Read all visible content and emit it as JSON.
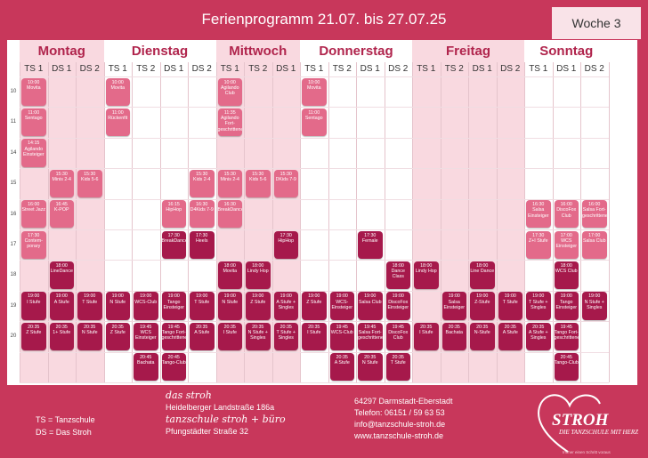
{
  "header": {
    "title": "Ferienprogramm 21.07. bis 27.07.25",
    "week": "Woche 3"
  },
  "hours": [
    10,
    11,
    14,
    15,
    16,
    17,
    18,
    19,
    20
  ],
  "days": [
    {
      "name": "Montag",
      "columns": [
        {
          "label": "TS 1",
          "events": [
            {
              "time": "10:00",
              "name": "Movita",
              "color": "#e36a8a"
            },
            {
              "time": "11:00",
              "name": "Sentago",
              "color": "#e36a8a"
            },
            {
              "time": "14:15",
              "name": "Agilando Einsteiger",
              "color": "#e36a8a"
            },
            {
              "time": "16:00",
              "name": "Street Jazz",
              "color": "#e36a8a"
            },
            {
              "time": "17:30",
              "name": "Contem-porary",
              "color": "#e36a8a"
            },
            {
              "time": "19:00",
              "name": "I Stufe",
              "color": "#a6194b"
            },
            {
              "time": "20:35",
              "name": "Z Stufe",
              "color": "#a6194b"
            }
          ]
        },
        {
          "label": "DS 1",
          "events": [
            {
              "time": "15:30",
              "name": "Minis 2-4",
              "color": "#e36a8a"
            },
            {
              "time": "16:45",
              "name": "K-POP",
              "color": "#e36a8a"
            },
            {
              "time": "18:00",
              "name": "LineDance",
              "color": "#a6194b"
            },
            {
              "time": "19:00",
              "name": "A Stufe",
              "color": "#a6194b"
            },
            {
              "time": "20:35",
              "name": "1+ Stufe",
              "color": "#a6194b"
            }
          ]
        },
        {
          "label": "DS 2",
          "events": [
            {
              "time": "15:30",
              "name": "Kids 5-6",
              "color": "#e36a8a"
            },
            {
              "time": "19:00",
              "name": "T Stufe",
              "color": "#a6194b"
            },
            {
              "time": "20:35",
              "name": "N Stufe",
              "color": "#a6194b"
            }
          ]
        }
      ]
    },
    {
      "name": "Dienstag",
      "columns": [
        {
          "label": "TS 1",
          "events": [
            {
              "time": "10:00",
              "name": "Movita",
              "color": "#e36a8a"
            },
            {
              "time": "11:00",
              "name": "Rückenfit",
              "color": "#e36a8a"
            },
            {
              "time": "19:00",
              "name": "N Stufe",
              "color": "#a6194b"
            },
            {
              "time": "20:35",
              "name": "Z Stufe",
              "color": "#a6194b"
            }
          ]
        },
        {
          "label": "TS 2",
          "events": [
            {
              "time": "19:00",
              "name": "WCS-Club",
              "color": "#a6194b"
            },
            {
              "time": "19:45",
              "name": "WCS Einsteiger",
              "color": "#a6194b"
            },
            {
              "time": "20:45",
              "name": "Bachata",
              "color": "#a6194b"
            }
          ]
        },
        {
          "label": "DS 1",
          "events": [
            {
              "time": "16:15",
              "name": "HipHop",
              "color": "#e36a8a"
            },
            {
              "time": "17:30",
              "name": "BreakDance",
              "color": "#a6194b"
            },
            {
              "time": "19:00",
              "name": "Tango Einsteiger",
              "color": "#a6194b"
            },
            {
              "time": "19:45",
              "name": "Tango Fort-geschrittene",
              "color": "#a6194b"
            },
            {
              "time": "20:45",
              "name": "Tango-Club",
              "color": "#a6194b"
            }
          ]
        },
        {
          "label": "DS 2",
          "events": [
            {
              "time": "15:30",
              "name": "Kids 2-4",
              "color": "#e36a8a"
            },
            {
              "time": "16:30",
              "name": "D4Kids 7-9",
              "color": "#e36a8a"
            },
            {
              "time": "17:30",
              "name": "Heels",
              "color": "#a6194b"
            },
            {
              "time": "19:00",
              "name": "T Stufe",
              "color": "#a6194b"
            },
            {
              "time": "20:35",
              "name": "A Stufe",
              "color": "#a6194b"
            }
          ]
        }
      ]
    },
    {
      "name": "Mittwoch",
      "columns": [
        {
          "label": "TS 1",
          "events": [
            {
              "time": "10:00",
              "name": "Agilando Club",
              "color": "#e36a8a"
            },
            {
              "time": "11:35",
              "name": "Agilando Fort-geschrittene",
              "color": "#e36a8a"
            },
            {
              "time": "15:30",
              "name": "Minis 2-4",
              "color": "#e36a8a"
            },
            {
              "time": "16:30",
              "name": "BreakDance",
              "color": "#e36a8a"
            },
            {
              "time": "18:00",
              "name": "Movita",
              "color": "#a6194b"
            },
            {
              "time": "19:00",
              "name": "N Stufe",
              "color": "#a6194b"
            },
            {
              "time": "20:35",
              "name": "I Stufe",
              "color": "#a6194b"
            }
          ]
        },
        {
          "label": "TS 2",
          "events": [
            {
              "time": "15:30",
              "name": "Kids 5-6",
              "color": "#e36a8a"
            },
            {
              "time": "18:00",
              "name": "Lindy Hop",
              "color": "#a6194b"
            },
            {
              "time": "19:00",
              "name": "Z Stufe",
              "color": "#a6194b"
            },
            {
              "time": "20:35",
              "name": "N Stufe + Singles",
              "color": "#a6194b"
            }
          ]
        },
        {
          "label": "DS 1",
          "events": [
            {
              "time": "15:30",
              "name": "DKids 7-9",
              "color": "#e36a8a"
            },
            {
              "time": "17:30",
              "name": "HipHop",
              "color": "#a6194b"
            },
            {
              "time": "19:00",
              "name": "A Stufe + Singles",
              "color": "#a6194b"
            },
            {
              "time": "20:35",
              "name": "T Stufe + Singles",
              "color": "#a6194b"
            }
          ]
        }
      ]
    },
    {
      "name": "Donnerstag",
      "columns": [
        {
          "label": "TS 1",
          "events": [
            {
              "time": "10:00",
              "name": "Movita",
              "color": "#e36a8a"
            },
            {
              "time": "11:00",
              "name": "Sentago",
              "color": "#e36a8a"
            },
            {
              "time": "19:00",
              "name": "Z Stufe",
              "color": "#a6194b"
            },
            {
              "time": "20:35",
              "name": "I Stufe",
              "color": "#a6194b"
            }
          ]
        },
        {
          "label": "TS 2",
          "events": [
            {
              "time": "19:00",
              "name": "WCS-Einsteiger",
              "color": "#a6194b"
            },
            {
              "time": "19:45",
              "name": "WCS-Club",
              "color": "#a6194b"
            },
            {
              "time": "20:35",
              "name": "A Stufe",
              "color": "#a6194b"
            }
          ]
        },
        {
          "label": "DS 1",
          "events": [
            {
              "time": "17:30",
              "name": "Female",
              "color": "#a6194b"
            },
            {
              "time": "19:00",
              "name": "Salsa Club",
              "color": "#a6194b"
            },
            {
              "time": "19:45",
              "name": "Salsa Fort-geschrittene",
              "color": "#a6194b"
            },
            {
              "time": "20:35",
              "name": "N Stufe",
              "color": "#a6194b"
            }
          ]
        },
        {
          "label": "DS 2",
          "events": [
            {
              "time": "18:00",
              "name": "Dance Class",
              "color": "#a6194b"
            },
            {
              "time": "19:00",
              "name": "DiscoFox Einsteiger",
              "color": "#a6194b"
            },
            {
              "time": "19:45",
              "name": "DiscoFox Club",
              "color": "#a6194b"
            },
            {
              "time": "20:35",
              "name": "T Stufe",
              "color": "#a6194b"
            }
          ]
        }
      ]
    },
    {
      "name": "Freitag",
      "columns": [
        {
          "label": "TS 1",
          "events": [
            {
              "time": "18:00",
              "name": "Lindy Hop",
              "color": "#a6194b"
            },
            {
              "time": "20:35",
              "name": "I Stufe",
              "color": "#a6194b"
            }
          ]
        },
        {
          "label": "TS 2",
          "events": [
            {
              "time": "19:00",
              "name": "Salsa Einsteiger",
              "color": "#a6194b"
            },
            {
              "time": "20:35",
              "name": "Bachata",
              "color": "#a6194b"
            }
          ]
        },
        {
          "label": "DS 1",
          "events": [
            {
              "time": "18:00",
              "name": "Line Dance",
              "color": "#a6194b"
            },
            {
              "time": "19:00",
              "name": "Z-Stufe",
              "color": "#a6194b"
            },
            {
              "time": "20:35",
              "name": "N-Stufe",
              "color": "#a6194b"
            }
          ]
        },
        {
          "label": "DS 2",
          "events": [
            {
              "time": "19:00",
              "name": "T Stufe",
              "color": "#a6194b"
            },
            {
              "time": "20:35",
              "name": "A Stufe",
              "color": "#a6194b"
            }
          ]
        }
      ]
    },
    {
      "name": "Sonntag",
      "columns": [
        {
          "label": "TS 1",
          "events": [
            {
              "time": "16:30",
              "name": "Salsa Einsteiger",
              "color": "#e36a8a"
            },
            {
              "time": "17:30",
              "name": "Z+I Stufe",
              "color": "#e36a8a"
            },
            {
              "time": "19:00",
              "name": "T Stufe + Singles",
              "color": "#a6194b"
            },
            {
              "time": "20:35",
              "name": "A Stufe + Singles",
              "color": "#a6194b"
            }
          ]
        },
        {
          "label": "DS 1",
          "events": [
            {
              "time": "16:00",
              "name": "DiscoFox Club",
              "color": "#e36a8a"
            },
            {
              "time": "17:00",
              "name": "WCS Einsteiger",
              "color": "#e36a8a"
            },
            {
              "time": "18:00",
              "name": "WCS Club",
              "color": "#a6194b"
            },
            {
              "time": "19:00",
              "name": "Tango Einsteiger",
              "color": "#a6194b"
            },
            {
              "time": "19:45",
              "name": "Tango Fort-geschrittene",
              "color": "#a6194b"
            },
            {
              "time": "20:45",
              "name": "Tango-Club",
              "color": "#a6194b"
            }
          ]
        },
        {
          "label": "DS 2",
          "events": [
            {
              "time": "16:00",
              "name": "Salsa Fort-geschrittene",
              "color": "#e36a8a"
            },
            {
              "time": "17:00",
              "name": "Salsa Club",
              "color": "#e36a8a"
            },
            {
              "time": "19:00",
              "name": "N Stufe + Singles",
              "color": "#a6194b"
            }
          ]
        }
      ]
    }
  ],
  "footer": {
    "legend": [
      "TS = Tanzschule",
      "DS = Das Stroh"
    ],
    "locations": [
      {
        "name": "das stroh",
        "address": "Heidelberger Landstraße 186a"
      },
      {
        "name": "tanzschule stroh + büro",
        "address": "Pfungstädter Straße 32"
      }
    ],
    "contact": [
      "64297 Darmstadt-Eberstadt",
      "Telefon: 06151 / 59 63 53",
      "info@tanzschule-stroh.de",
      "www.tanzschule-stroh.de"
    ],
    "logo": {
      "name": "STROH",
      "tagline": "DIE TANZSCHULE MIT HERZ",
      "slogan": "Immer einen Schritt voraus"
    }
  }
}
